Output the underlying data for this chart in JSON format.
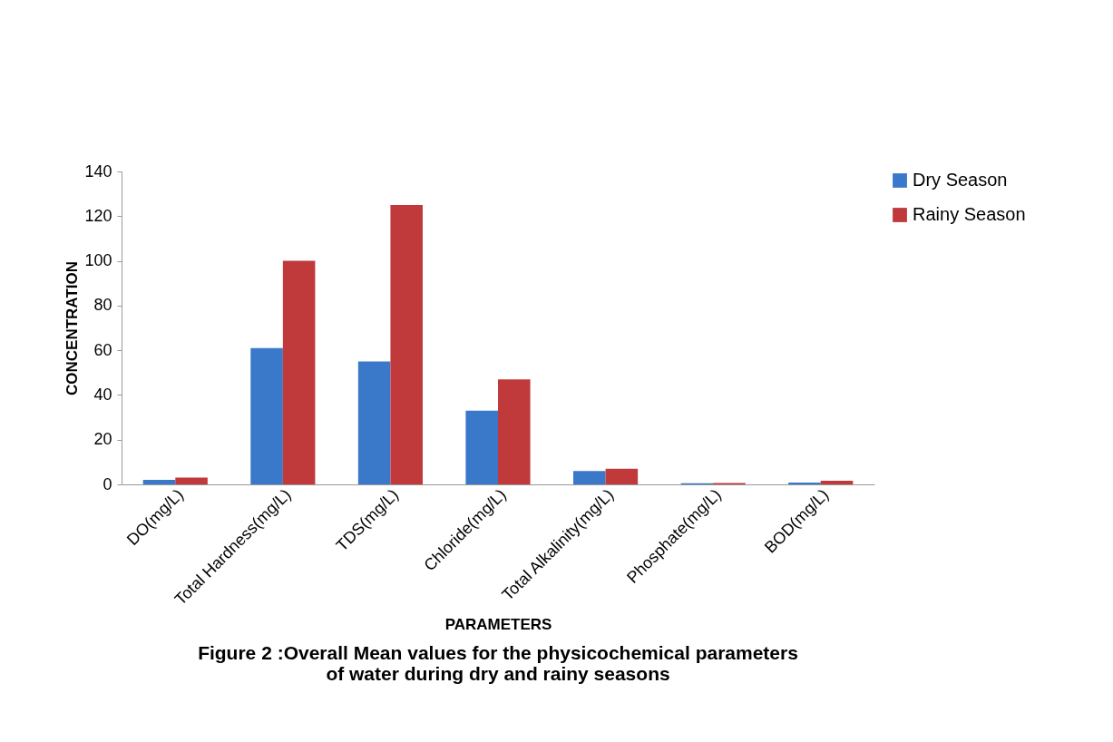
{
  "chart_data": {
    "type": "bar",
    "title": [
      "Figure 2 :Overall Mean values for the physicochemical parameters",
      "of water during dry and rainy seasons"
    ],
    "xlabel": "PARAMETERS",
    "ylabel": "CONCENTRATION",
    "categories": [
      "DO(mg/L)",
      "Total Hardness(mg/L)",
      "TDS(mg/L)",
      "Chloride(mg/L)",
      "Total Alkalinity(mg/L)",
      "Phosphate(mg/L)",
      "BOD(mg/L)"
    ],
    "series": [
      {
        "name": "Dry Season",
        "color": "#3a78c9",
        "values": [
          2,
          61,
          55,
          33,
          6,
          0.5,
          0.8
        ]
      },
      {
        "name": "Rainy Season",
        "color": "#c0393b",
        "values": [
          3,
          100,
          125,
          47,
          7,
          0.6,
          1.6
        ]
      }
    ],
    "ylim": [
      0,
      140
    ],
    "yticks": [
      0,
      20,
      40,
      60,
      80,
      100,
      120,
      140
    ],
    "grid": false,
    "legend": "right"
  }
}
